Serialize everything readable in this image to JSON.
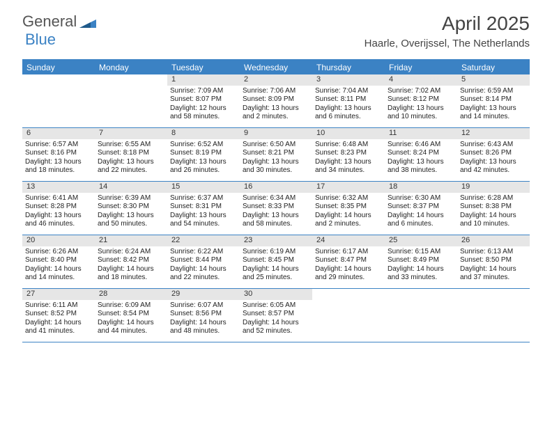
{
  "logo": {
    "text1": "General",
    "text2": "Blue",
    "color1": "#555555",
    "color2": "#3b82c4"
  },
  "title": "April 2025",
  "location": "Haarle, Overijssel, The Netherlands",
  "colors": {
    "header_bg": "#3b82c4",
    "date_bg": "#e6e6e6",
    "border": "#3b82c4",
    "text": "#222222"
  },
  "day_headers": [
    "Sunday",
    "Monday",
    "Tuesday",
    "Wednesday",
    "Thursday",
    "Friday",
    "Saturday"
  ],
  "weeks": [
    [
      {
        "empty": true
      },
      {
        "empty": true
      },
      {
        "date": "1",
        "sunrise": "Sunrise: 7:09 AM",
        "sunset": "Sunset: 8:07 PM",
        "daylight": "Daylight: 12 hours and 58 minutes."
      },
      {
        "date": "2",
        "sunrise": "Sunrise: 7:06 AM",
        "sunset": "Sunset: 8:09 PM",
        "daylight": "Daylight: 13 hours and 2 minutes."
      },
      {
        "date": "3",
        "sunrise": "Sunrise: 7:04 AM",
        "sunset": "Sunset: 8:11 PM",
        "daylight": "Daylight: 13 hours and 6 minutes."
      },
      {
        "date": "4",
        "sunrise": "Sunrise: 7:02 AM",
        "sunset": "Sunset: 8:12 PM",
        "daylight": "Daylight: 13 hours and 10 minutes."
      },
      {
        "date": "5",
        "sunrise": "Sunrise: 6:59 AM",
        "sunset": "Sunset: 8:14 PM",
        "daylight": "Daylight: 13 hours and 14 minutes."
      }
    ],
    [
      {
        "date": "6",
        "sunrise": "Sunrise: 6:57 AM",
        "sunset": "Sunset: 8:16 PM",
        "daylight": "Daylight: 13 hours and 18 minutes."
      },
      {
        "date": "7",
        "sunrise": "Sunrise: 6:55 AM",
        "sunset": "Sunset: 8:18 PM",
        "daylight": "Daylight: 13 hours and 22 minutes."
      },
      {
        "date": "8",
        "sunrise": "Sunrise: 6:52 AM",
        "sunset": "Sunset: 8:19 PM",
        "daylight": "Daylight: 13 hours and 26 minutes."
      },
      {
        "date": "9",
        "sunrise": "Sunrise: 6:50 AM",
        "sunset": "Sunset: 8:21 PM",
        "daylight": "Daylight: 13 hours and 30 minutes."
      },
      {
        "date": "10",
        "sunrise": "Sunrise: 6:48 AM",
        "sunset": "Sunset: 8:23 PM",
        "daylight": "Daylight: 13 hours and 34 minutes."
      },
      {
        "date": "11",
        "sunrise": "Sunrise: 6:46 AM",
        "sunset": "Sunset: 8:24 PM",
        "daylight": "Daylight: 13 hours and 38 minutes."
      },
      {
        "date": "12",
        "sunrise": "Sunrise: 6:43 AM",
        "sunset": "Sunset: 8:26 PM",
        "daylight": "Daylight: 13 hours and 42 minutes."
      }
    ],
    [
      {
        "date": "13",
        "sunrise": "Sunrise: 6:41 AM",
        "sunset": "Sunset: 8:28 PM",
        "daylight": "Daylight: 13 hours and 46 minutes."
      },
      {
        "date": "14",
        "sunrise": "Sunrise: 6:39 AM",
        "sunset": "Sunset: 8:30 PM",
        "daylight": "Daylight: 13 hours and 50 minutes."
      },
      {
        "date": "15",
        "sunrise": "Sunrise: 6:37 AM",
        "sunset": "Sunset: 8:31 PM",
        "daylight": "Daylight: 13 hours and 54 minutes."
      },
      {
        "date": "16",
        "sunrise": "Sunrise: 6:34 AM",
        "sunset": "Sunset: 8:33 PM",
        "daylight": "Daylight: 13 hours and 58 minutes."
      },
      {
        "date": "17",
        "sunrise": "Sunrise: 6:32 AM",
        "sunset": "Sunset: 8:35 PM",
        "daylight": "Daylight: 14 hours and 2 minutes."
      },
      {
        "date": "18",
        "sunrise": "Sunrise: 6:30 AM",
        "sunset": "Sunset: 8:37 PM",
        "daylight": "Daylight: 14 hours and 6 minutes."
      },
      {
        "date": "19",
        "sunrise": "Sunrise: 6:28 AM",
        "sunset": "Sunset: 8:38 PM",
        "daylight": "Daylight: 14 hours and 10 minutes."
      }
    ],
    [
      {
        "date": "20",
        "sunrise": "Sunrise: 6:26 AM",
        "sunset": "Sunset: 8:40 PM",
        "daylight": "Daylight: 14 hours and 14 minutes."
      },
      {
        "date": "21",
        "sunrise": "Sunrise: 6:24 AM",
        "sunset": "Sunset: 8:42 PM",
        "daylight": "Daylight: 14 hours and 18 minutes."
      },
      {
        "date": "22",
        "sunrise": "Sunrise: 6:22 AM",
        "sunset": "Sunset: 8:44 PM",
        "daylight": "Daylight: 14 hours and 22 minutes."
      },
      {
        "date": "23",
        "sunrise": "Sunrise: 6:19 AM",
        "sunset": "Sunset: 8:45 PM",
        "daylight": "Daylight: 14 hours and 25 minutes."
      },
      {
        "date": "24",
        "sunrise": "Sunrise: 6:17 AM",
        "sunset": "Sunset: 8:47 PM",
        "daylight": "Daylight: 14 hours and 29 minutes."
      },
      {
        "date": "25",
        "sunrise": "Sunrise: 6:15 AM",
        "sunset": "Sunset: 8:49 PM",
        "daylight": "Daylight: 14 hours and 33 minutes."
      },
      {
        "date": "26",
        "sunrise": "Sunrise: 6:13 AM",
        "sunset": "Sunset: 8:50 PM",
        "daylight": "Daylight: 14 hours and 37 minutes."
      }
    ],
    [
      {
        "date": "27",
        "sunrise": "Sunrise: 6:11 AM",
        "sunset": "Sunset: 8:52 PM",
        "daylight": "Daylight: 14 hours and 41 minutes."
      },
      {
        "date": "28",
        "sunrise": "Sunrise: 6:09 AM",
        "sunset": "Sunset: 8:54 PM",
        "daylight": "Daylight: 14 hours and 44 minutes."
      },
      {
        "date": "29",
        "sunrise": "Sunrise: 6:07 AM",
        "sunset": "Sunset: 8:56 PM",
        "daylight": "Daylight: 14 hours and 48 minutes."
      },
      {
        "date": "30",
        "sunrise": "Sunrise: 6:05 AM",
        "sunset": "Sunset: 8:57 PM",
        "daylight": "Daylight: 14 hours and 52 minutes."
      },
      {
        "empty": true
      },
      {
        "empty": true
      },
      {
        "empty": true
      }
    ]
  ]
}
